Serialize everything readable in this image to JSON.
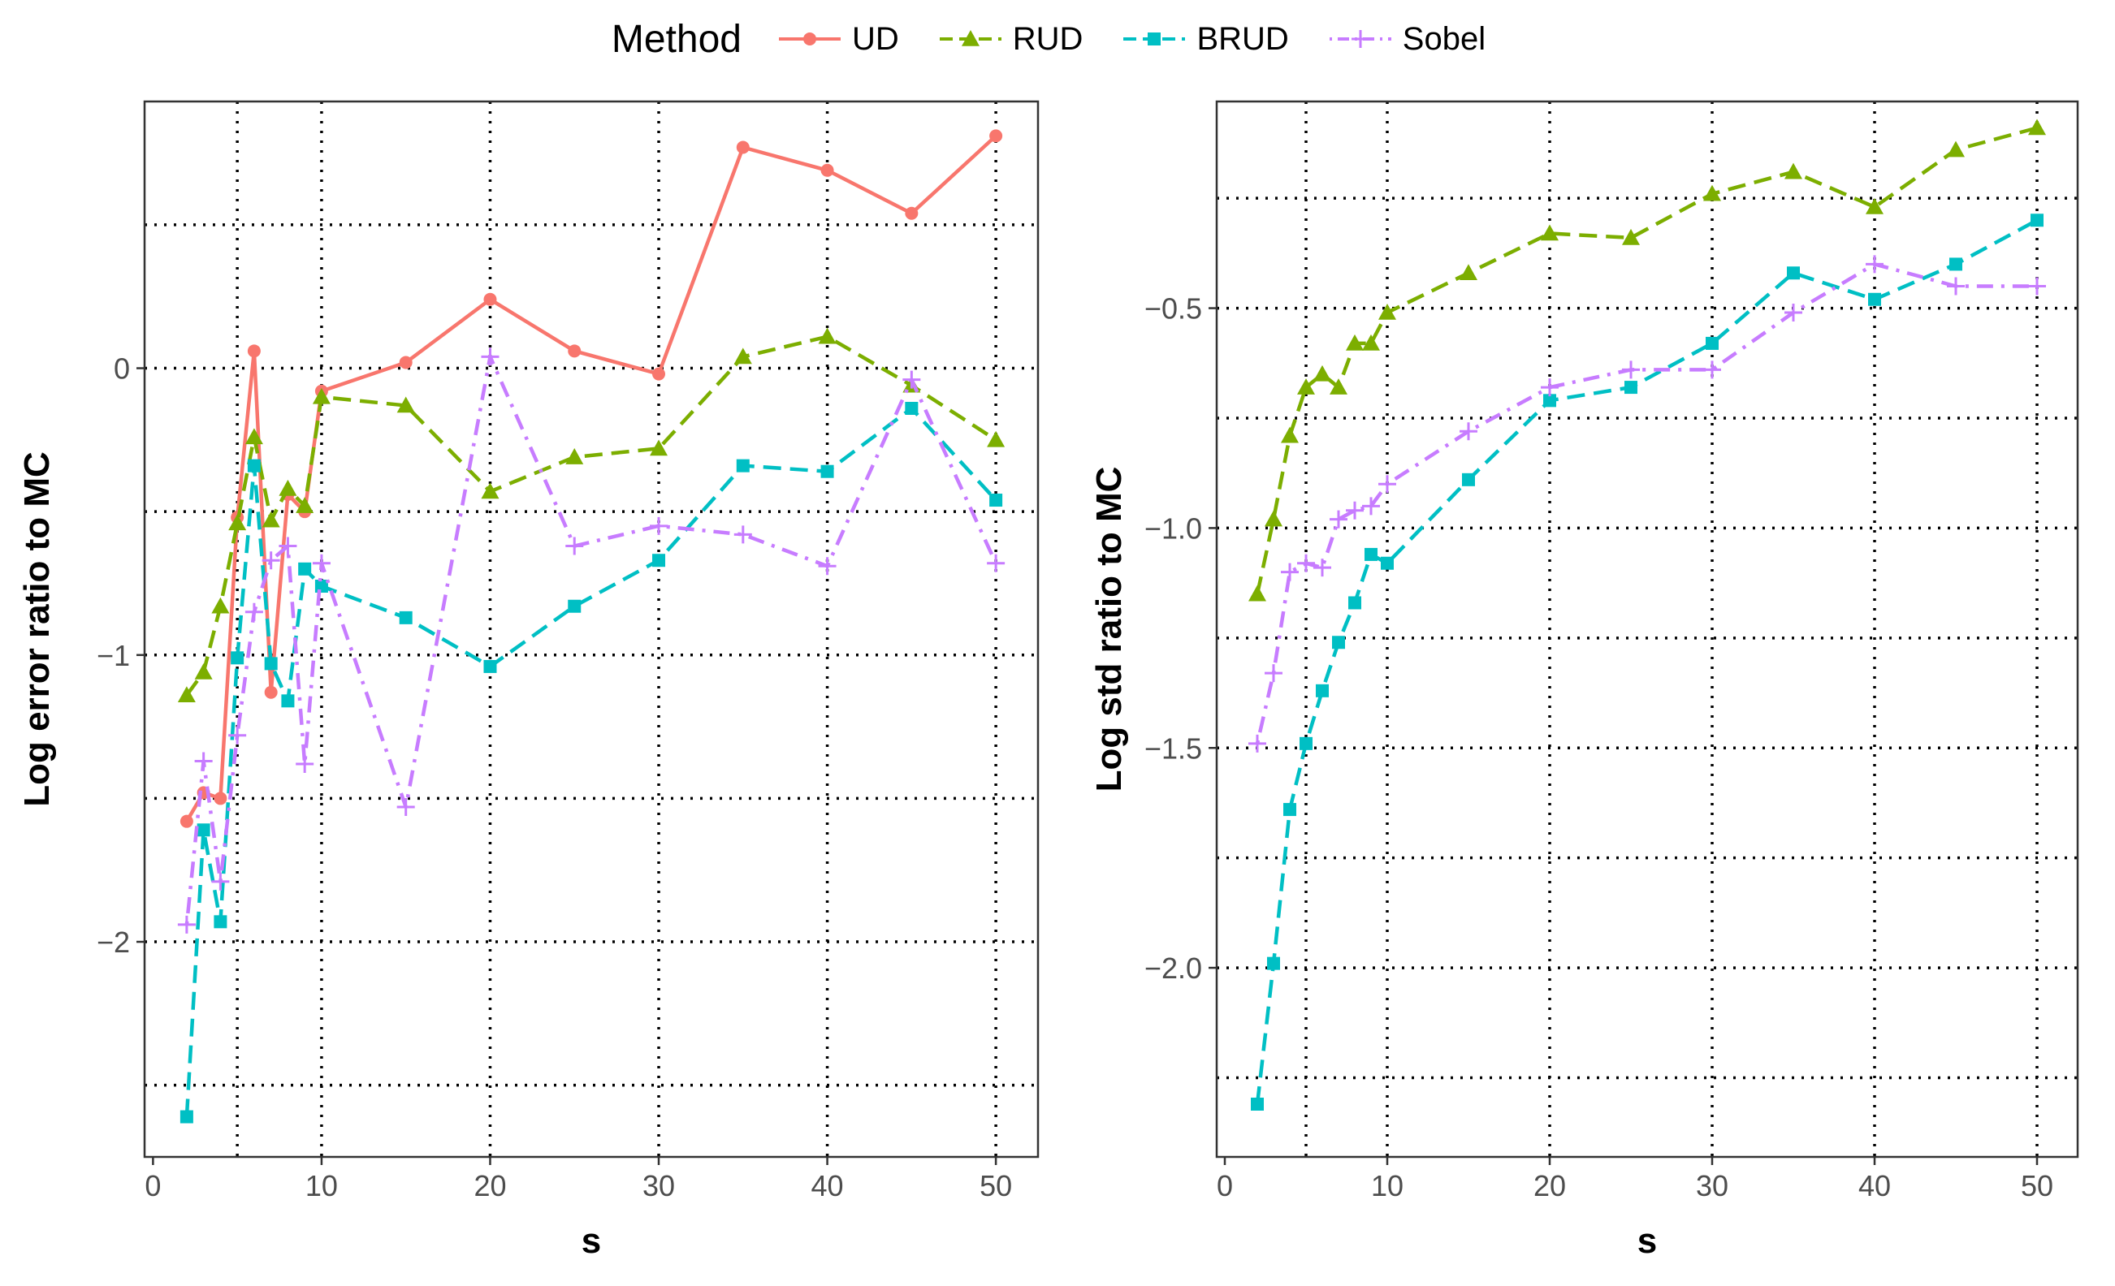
{
  "legend": {
    "title": "Method",
    "items": [
      {
        "name": "UD",
        "color": "#F8766D",
        "marker": "circle",
        "dash": "solid"
      },
      {
        "name": "RUD",
        "color": "#7CAE00",
        "marker": "triangle",
        "dash": "dashed"
      },
      {
        "name": "BRUD",
        "color": "#00BFC4",
        "marker": "square",
        "dash": "dashed"
      },
      {
        "name": "Sobel",
        "color": "#C77CFF",
        "marker": "plus",
        "dash": "dotdash"
      }
    ]
  },
  "chart_data": [
    {
      "type": "line",
      "xlabel": "s",
      "ylabel": "Log error ratio to MC",
      "xlim": [
        -0.5,
        52.5
      ],
      "ylim": [
        -2.75,
        0.93
      ],
      "xticks": [
        0,
        10,
        20,
        30,
        40,
        50
      ],
      "yticks": [
        -2,
        -1,
        0
      ],
      "xgrid": [
        5,
        10,
        20,
        30,
        40,
        50
      ],
      "ygrid": [
        -2.5,
        -2,
        -1.5,
        -1,
        -0.5,
        0,
        0.5
      ],
      "grid": true,
      "x": [
        2,
        3,
        4,
        5,
        6,
        7,
        8,
        9,
        10,
        15,
        20,
        25,
        30,
        35,
        40,
        45,
        50
      ],
      "series": [
        {
          "name": "UD",
          "values": [
            -1.58,
            -1.48,
            -1.5,
            -0.52,
            0.06,
            -1.13,
            -0.44,
            -0.5,
            -0.08,
            0.02,
            0.24,
            0.06,
            -0.02,
            0.77,
            0.69,
            0.54,
            0.81
          ]
        },
        {
          "name": "RUD",
          "values": [
            -1.14,
            -1.06,
            -0.83,
            -0.54,
            -0.24,
            -0.53,
            -0.42,
            -0.48,
            -0.1,
            -0.13,
            -0.43,
            -0.31,
            -0.28,
            0.04,
            0.11,
            -0.06,
            -0.25
          ]
        },
        {
          "name": "BRUD",
          "values": [
            -2.61,
            -1.61,
            -1.93,
            -1.01,
            -0.34,
            -1.03,
            -1.16,
            -0.7,
            -0.76,
            -0.87,
            -1.04,
            -0.83,
            -0.67,
            -0.34,
            -0.36,
            -0.14,
            -0.46
          ]
        },
        {
          "name": "Sobel",
          "values": [
            -1.94,
            -1.37,
            -1.79,
            -1.28,
            -0.85,
            -0.67,
            -0.62,
            -1.38,
            -0.68,
            -1.53,
            0.04,
            -0.62,
            -0.55,
            -0.58,
            -0.69,
            -0.04,
            -0.68
          ]
        }
      ]
    },
    {
      "type": "line",
      "xlabel": "s",
      "ylabel": "Log std ratio to MC",
      "xlim": [
        -0.5,
        52.5
      ],
      "ylim": [
        -2.43,
        -0.03
      ],
      "xticks": [
        0,
        10,
        20,
        30,
        40,
        50
      ],
      "yticks": [
        -2.0,
        -1.5,
        -1.0,
        -0.5
      ],
      "ytick_labels": [
        "−2.0",
        "−1.5",
        "−1.0",
        "−0.5"
      ],
      "xgrid": [
        5,
        10,
        20,
        30,
        40,
        50
      ],
      "ygrid": [
        -2.25,
        -2,
        -1.75,
        -1.5,
        -1.25,
        -1,
        -0.75,
        -0.5,
        -0.25
      ],
      "grid": true,
      "x": [
        2,
        3,
        4,
        5,
        6,
        7,
        8,
        9,
        10,
        15,
        20,
        25,
        30,
        35,
        40,
        45,
        50
      ],
      "series": [
        {
          "name": "RUD",
          "values": [
            -1.15,
            -0.98,
            -0.79,
            -0.68,
            -0.65,
            -0.68,
            -0.58,
            -0.58,
            -0.51,
            -0.42,
            -0.33,
            -0.34,
            -0.24,
            -0.19,
            -0.27,
            -0.14,
            -0.09
          ]
        },
        {
          "name": "BRUD",
          "values": [
            -2.31,
            -1.99,
            -1.64,
            -1.49,
            -1.37,
            -1.26,
            -1.17,
            -1.06,
            -1.08,
            -0.89,
            -0.71,
            -0.68,
            -0.58,
            -0.42,
            -0.48,
            -0.4,
            -0.3
          ]
        },
        {
          "name": "Sobel",
          "values": [
            -1.49,
            -1.33,
            -1.1,
            -1.08,
            -1.09,
            -0.98,
            -0.96,
            -0.95,
            -0.9,
            -0.78,
            -0.68,
            -0.64,
            -0.64,
            -0.51,
            -0.4,
            -0.45,
            -0.45
          ]
        }
      ]
    }
  ]
}
